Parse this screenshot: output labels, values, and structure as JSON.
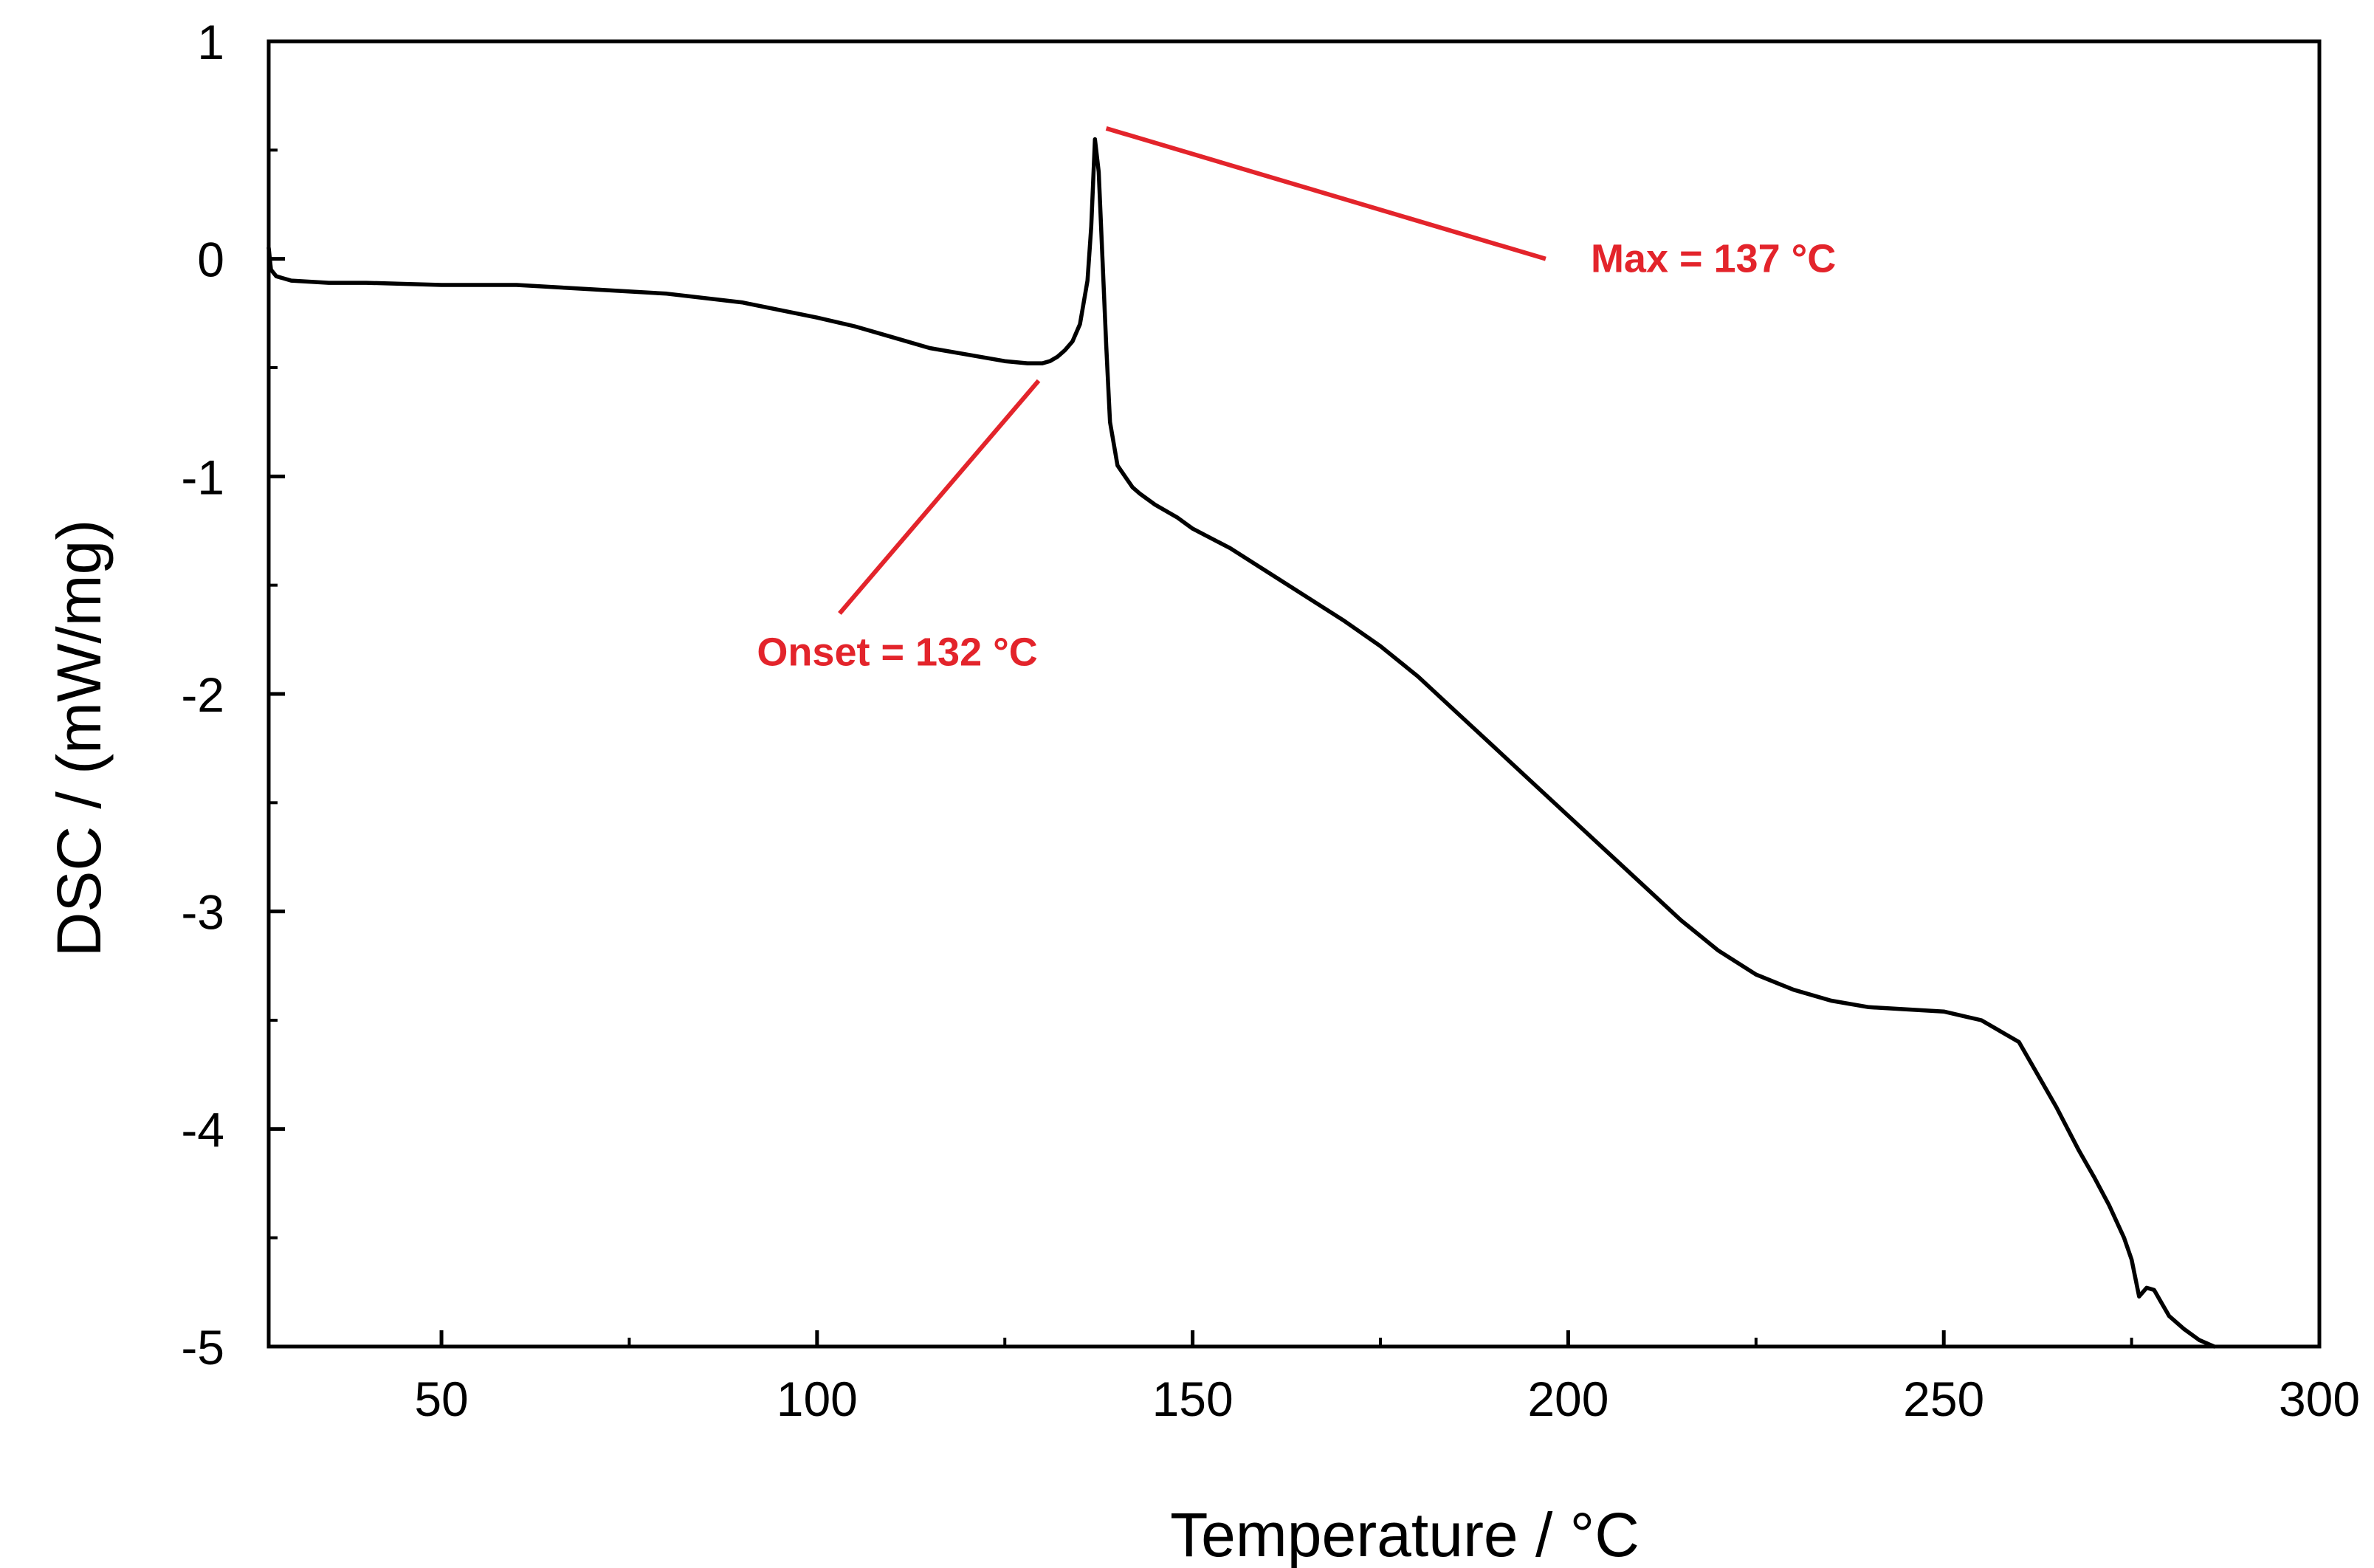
{
  "chart_data": {
    "type": "line",
    "title": "",
    "xlabel": "Temperature / °C",
    "ylabel": "DSC / (mW/mg)",
    "xlim": [
      27,
      300
    ],
    "ylim": [
      -5,
      1
    ],
    "x_ticks": [
      50,
      100,
      150,
      200,
      250,
      300
    ],
    "x_tick_labels": [
      "50",
      "100",
      "150",
      "200",
      "250",
      "300"
    ],
    "x_minor_ticks": [
      75,
      125,
      175,
      225,
      275
    ],
    "y_ticks": [
      1,
      0,
      -1,
      -2,
      -3,
      -4,
      -5
    ],
    "y_tick_labels": [
      "1",
      "0",
      "-1",
      "-2",
      "-3",
      "-4",
      "-5"
    ],
    "y_minor_ticks": [
      0.5,
      -0.5,
      -1.5,
      -2.5,
      -3.5,
      -4.5
    ],
    "grid": false,
    "series": [
      {
        "name": "DSC",
        "color": "#000000",
        "x": [
          27,
          27.3,
          28,
          30,
          35,
          40,
          50,
          60,
          70,
          80,
          90,
          100,
          105,
          110,
          115,
          120,
          125,
          128,
          130,
          131,
          132,
          133,
          134,
          135,
          136,
          136.5,
          137,
          137.5,
          138,
          138.5,
          139,
          140,
          141,
          142,
          143,
          145,
          148,
          150,
          155,
          160,
          165,
          170,
          175,
          180,
          185,
          190,
          195,
          200,
          205,
          210,
          215,
          220,
          225,
          230,
          235,
          240,
          245,
          250,
          255,
          257,
          260,
          262,
          265,
          268,
          270,
          272,
          274,
          275,
          276,
          277,
          278,
          279,
          280,
          282,
          284,
          286
        ],
        "y": [
          0.05,
          -0.05,
          -0.08,
          -0.1,
          -0.11,
          -0.11,
          -0.12,
          -0.12,
          -0.14,
          -0.16,
          -0.2,
          -0.27,
          -0.31,
          -0.36,
          -0.41,
          -0.44,
          -0.47,
          -0.48,
          -0.48,
          -0.47,
          -0.45,
          -0.42,
          -0.38,
          -0.3,
          -0.1,
          0.15,
          0.55,
          0.4,
          0.0,
          -0.4,
          -0.75,
          -0.95,
          -1.0,
          -1.05,
          -1.08,
          -1.13,
          -1.19,
          -1.24,
          -1.33,
          -1.44,
          -1.55,
          -1.66,
          -1.78,
          -1.92,
          -2.08,
          -2.24,
          -2.4,
          -2.56,
          -2.72,
          -2.88,
          -3.04,
          -3.18,
          -3.29,
          -3.36,
          -3.41,
          -3.44,
          -3.45,
          -3.46,
          -3.5,
          -3.54,
          -3.6,
          -3.72,
          -3.9,
          -4.1,
          -4.22,
          -4.35,
          -4.5,
          -4.6,
          -4.77,
          -4.73,
          -4.74,
          -4.8,
          -4.86,
          -4.92,
          -4.97,
          -5.0
        ]
      }
    ],
    "annotations": [
      {
        "text": "Max = 137 °C",
        "color": "#e3242b",
        "line_from": [
          138.5,
          0.6
        ],
        "line_to": [
          197,
          0.0
        ],
        "label_at": [
          203,
          -0.06
        ]
      },
      {
        "text": "Onset = 132 °C",
        "color": "#e3242b",
        "line_from": [
          129.5,
          -0.56
        ],
        "line_to": [
          103,
          -1.63
        ],
        "label_at": [
          92,
          -1.87
        ]
      }
    ]
  }
}
